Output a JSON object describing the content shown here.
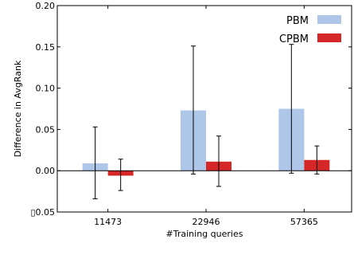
{
  "chart_data": {
    "type": "bar",
    "title": "",
    "xlabel": "#Training queries",
    "ylabel": "Difference in AvgRank",
    "categories": [
      "11473",
      "22946",
      "57365"
    ],
    "ylim": [
      -0.05,
      0.2
    ],
    "yticks": [
      {
        "value": 0.2,
        "label": "0.20"
      },
      {
        "value": 0.15,
        "label": "0.15"
      },
      {
        "value": 0.1,
        "label": "0.10"
      },
      {
        "value": 0.05,
        "label": "0.05"
      },
      {
        "value": 0.0,
        "label": "0.00"
      },
      {
        "value": -0.05,
        "label": "▯0.05"
      }
    ],
    "grid": false,
    "legend_position": "top-right",
    "series": [
      {
        "name": "PBM",
        "color": "#aec7e8",
        "values": [
          0.009,
          0.073,
          0.075
        ],
        "error_low": [
          -0.034,
          -0.004,
          -0.003
        ],
        "error_high": [
          0.053,
          0.151,
          0.153
        ]
      },
      {
        "name": "CPBM",
        "color": "#d62728",
        "values": [
          -0.006,
          0.011,
          0.013
        ],
        "error_low": [
          -0.024,
          -0.019,
          -0.004
        ],
        "error_high": [
          0.014,
          0.042,
          0.03
        ]
      }
    ]
  }
}
